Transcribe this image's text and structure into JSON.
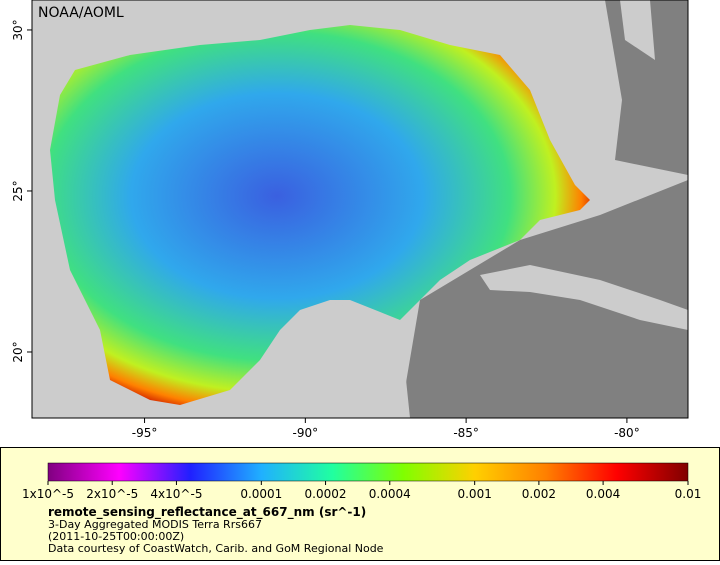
{
  "map": {
    "label": "NOAA/AOML",
    "xlim": [
      -98.5,
      -78.1
    ],
    "ylim": [
      17.95,
      30.93
    ],
    "xticks": [
      {
        "value": -95,
        "label": "-95°"
      },
      {
        "value": -90,
        "label": "-90°"
      },
      {
        "value": -85,
        "label": "-85°"
      },
      {
        "value": -80,
        "label": "-80°"
      }
    ],
    "yticks": [
      {
        "value": 20,
        "label": "20°"
      },
      {
        "value": 25,
        "label": "25°"
      },
      {
        "value": 30,
        "label": "30°"
      }
    ]
  },
  "colorbar": {
    "log": true,
    "range": [
      1e-05,
      0.01
    ],
    "colors": [
      "#800080",
      "#ff00ff",
      "#2020ff",
      "#20b0ff",
      "#20ffa0",
      "#80ff00",
      "#ffd000",
      "#ff8000",
      "#ff0000",
      "#800000"
    ],
    "ticks": [
      {
        "value": 1e-05,
        "label": "1x10^-5"
      },
      {
        "value": 2e-05,
        "label": "2x10^-5"
      },
      {
        "value": 4e-05,
        "label": "4x10^-5"
      },
      0.0001,
      0.0002,
      0.0004,
      0.001,
      0.002,
      0.004,
      0.01
    ]
  },
  "caption": {
    "variable": "remote_sensing_reflectance_at_667_nm (sr^-1)",
    "lines": [
      "3-Day Aggregated MODIS Terra Rrs667",
      "(2011-10-25T00:00:00Z)",
      "Data courtesy of CoastWatch, Carib. and GoM Regional Node"
    ]
  }
}
